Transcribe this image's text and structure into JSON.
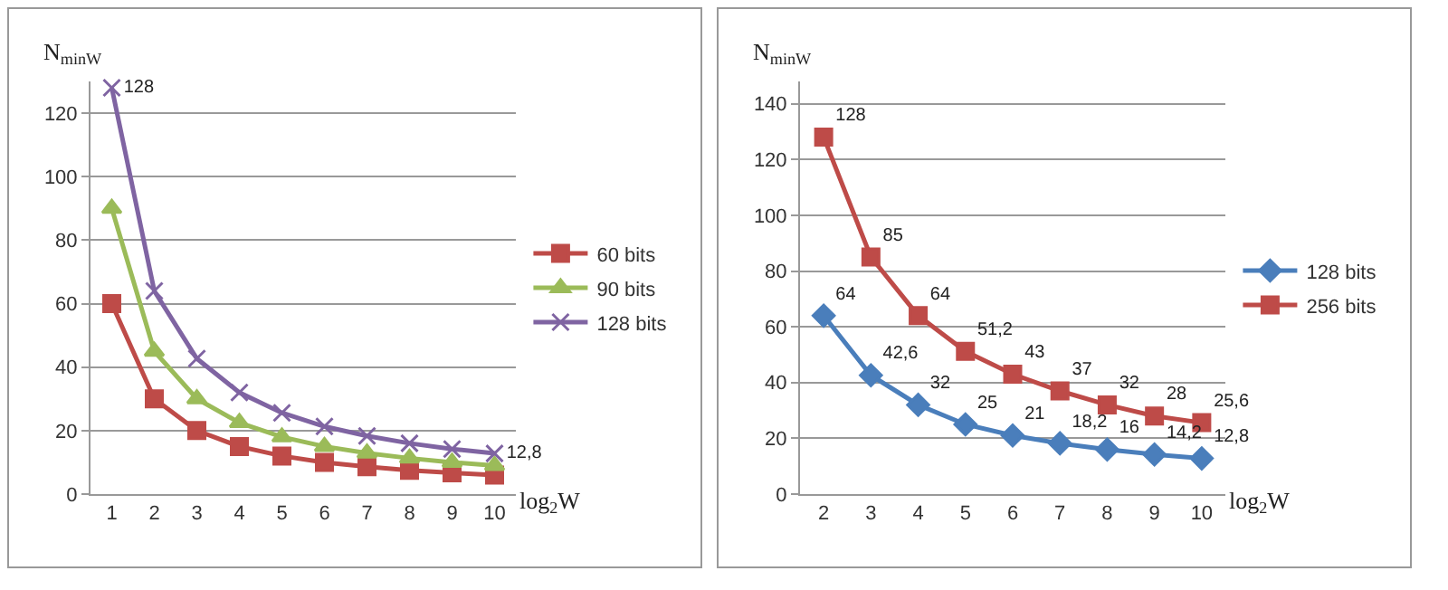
{
  "chart_data": [
    {
      "type": "line",
      "xlabel": "log$_{2}$W",
      "ylabel": "N$_{minW}$",
      "categories": [
        "1",
        "2",
        "3",
        "4",
        "5",
        "6",
        "7",
        "8",
        "9",
        "10"
      ],
      "ylim": [
        0,
        130
      ],
      "yticks": [
        0,
        20,
        40,
        60,
        80,
        100,
        120
      ],
      "grid": "y",
      "legend": "right",
      "series": [
        {
          "name": "60 bits",
          "color": "#be4b48",
          "marker": "square",
          "values": [
            60,
            30,
            20,
            15,
            12,
            10,
            8.6,
            7.5,
            6.7,
            6
          ]
        },
        {
          "name": "90 bits",
          "color": "#9bbb59",
          "marker": "triangle",
          "values": [
            90,
            45,
            30,
            22.5,
            18,
            15,
            12.9,
            11.3,
            10,
            9
          ]
        },
        {
          "name": "128 bits",
          "color": "#7f64a2",
          "marker": "cross",
          "values": [
            128,
            64,
            42.7,
            32,
            25.6,
            21.3,
            18.3,
            16,
            14.2,
            12.8
          ],
          "value_labels": [
            "128",
            null,
            null,
            null,
            null,
            null,
            null,
            null,
            null,
            "12,8"
          ]
        }
      ]
    },
    {
      "type": "line",
      "xlabel": "log$_{2}$W",
      "ylabel": "N$_{minW}$",
      "categories": [
        "2",
        "3",
        "4",
        "5",
        "6",
        "7",
        "8",
        "9",
        "10"
      ],
      "ylim": [
        0,
        148
      ],
      "yticks": [
        0,
        20,
        40,
        60,
        80,
        100,
        120,
        140
      ],
      "grid": "y",
      "legend": "right",
      "series": [
        {
          "name": "128 bits",
          "color": "#4a7ebb",
          "marker": "diamond",
          "values": [
            64,
            42.6,
            32,
            25,
            21,
            18.2,
            16,
            14.2,
            12.8
          ],
          "value_labels": [
            "64",
            "42,6",
            "32",
            "25",
            "21",
            "18,2",
            "16",
            "14,2",
            "12,8"
          ]
        },
        {
          "name": "256 bits",
          "color": "#be4b48",
          "marker": "square",
          "values": [
            128,
            85,
            64,
            51.2,
            43,
            37,
            32,
            28,
            25.6
          ],
          "value_labels": [
            "128",
            "85",
            "64",
            "51,2",
            "43",
            "37",
            "32",
            "28",
            "25,6"
          ]
        }
      ]
    }
  ]
}
